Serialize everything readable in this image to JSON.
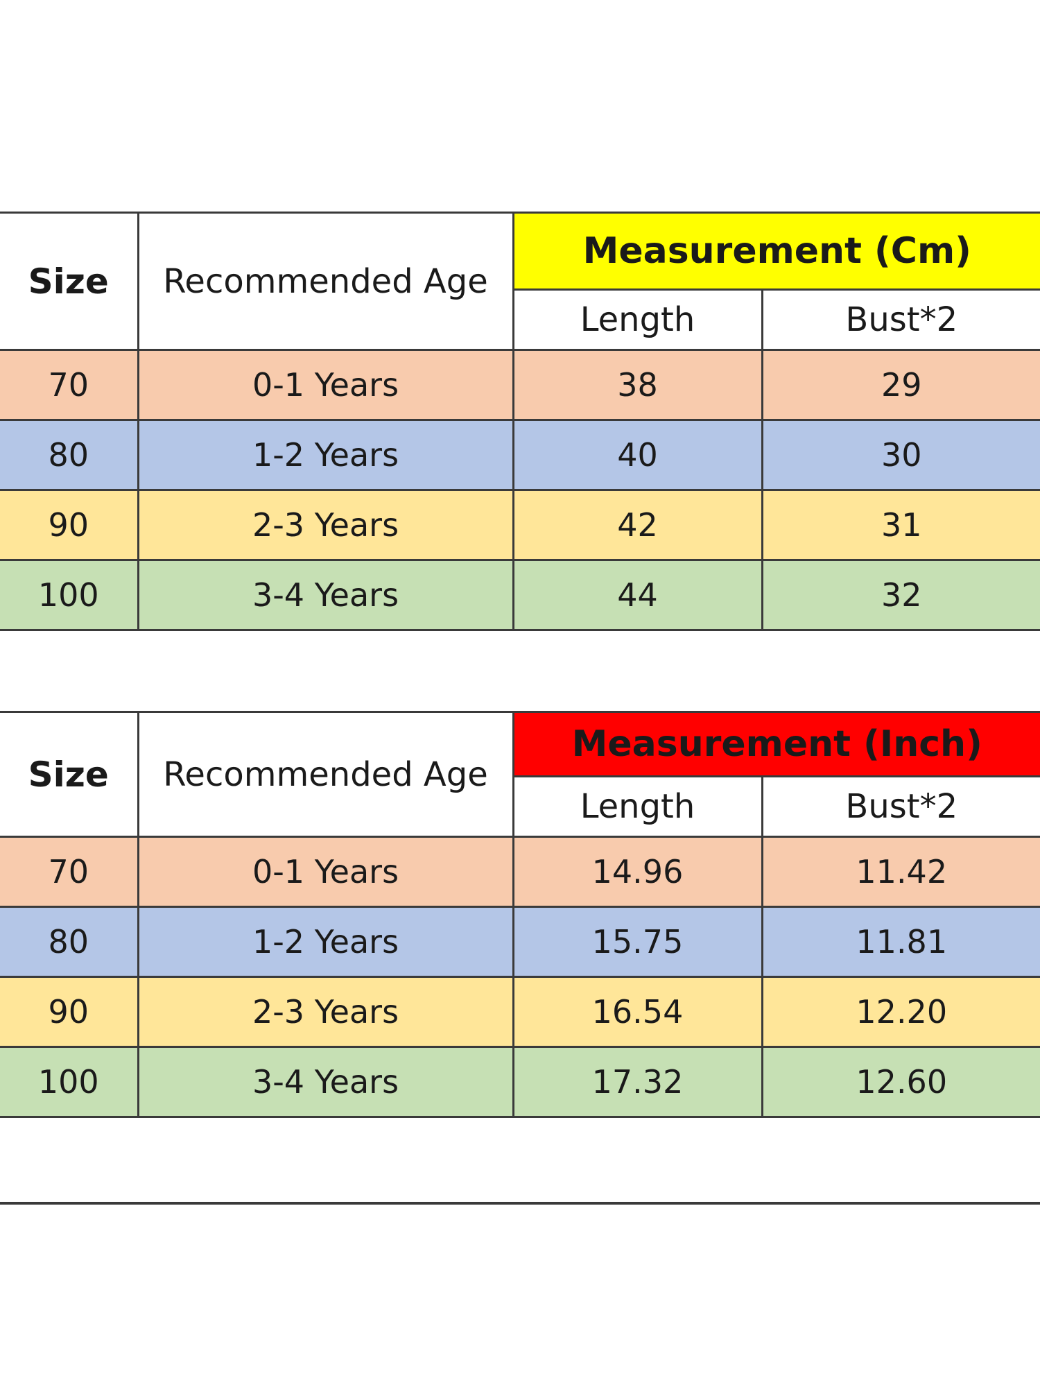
{
  "tables": [
    {
      "unit_header": "Measurement (Cm)",
      "header_color": "#ffff00",
      "size_label": "Size",
      "age_label": "Recommended Age",
      "length_label": "Length",
      "bust_label": "Bust*2",
      "rows": [
        {
          "size": "70",
          "age": "0-1 Years",
          "length": "38",
          "bust": "29"
        },
        {
          "size": "80",
          "age": "1-2 Years",
          "length": "40",
          "bust": "30"
        },
        {
          "size": "90",
          "age": "2-3 Years",
          "length": "42",
          "bust": "31"
        },
        {
          "size": "100",
          "age": "3-4 Years",
          "length": "44",
          "bust": "32"
        }
      ]
    },
    {
      "unit_header": "Measurement (Inch)",
      "header_color": "#ff0000",
      "size_label": "Size",
      "age_label": "Recommended Age",
      "length_label": "Length",
      "bust_label": "Bust*2",
      "rows": [
        {
          "size": "70",
          "age": "0-1 Years",
          "length": "14.96",
          "bust": "11.42"
        },
        {
          "size": "80",
          "age": "1-2 Years",
          "length": "15.75",
          "bust": "11.81"
        },
        {
          "size": "90",
          "age": "2-3 Years",
          "length": "16.54",
          "bust": "12.20"
        },
        {
          "size": "100",
          "age": "3-4 Years",
          "length": "17.32",
          "bust": "12.60"
        }
      ]
    }
  ],
  "row_colors": [
    "#f8cbad",
    "#b4c6e7",
    "#ffe699",
    "#c6e0b4"
  ]
}
